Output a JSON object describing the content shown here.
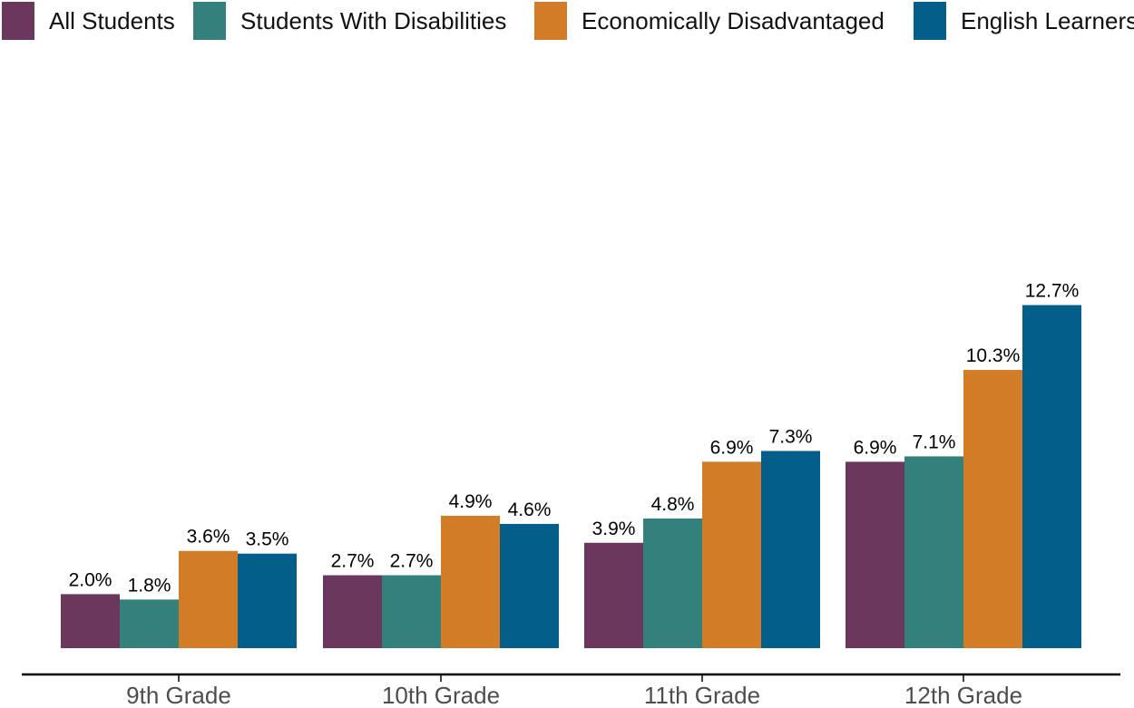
{
  "chart_data": {
    "type": "bar",
    "categories": [
      "9th Grade",
      "10th Grade",
      "11th Grade",
      "12th Grade"
    ],
    "series": [
      {
        "name": "All Students",
        "color": "#6b375c",
        "values": [
          2.0,
          2.7,
          3.9,
          6.9
        ],
        "labels": [
          "2.0%",
          "2.7%",
          "3.9%",
          "6.9%"
        ]
      },
      {
        "name": "Students With Disabilities",
        "color": "#33807d",
        "values": [
          1.8,
          2.7,
          4.8,
          7.1
        ],
        "labels": [
          "1.8%",
          "2.7%",
          "4.8%",
          "7.1%"
        ]
      },
      {
        "name": "Economically Disadvantaged",
        "color": "#d27c28",
        "values": [
          3.6,
          4.9,
          6.9,
          10.3
        ],
        "labels": [
          "3.6%",
          "4.9%",
          "6.9%",
          "10.3%"
        ]
      },
      {
        "name": "English Learners",
        "color": "#035e8a",
        "values": [
          3.5,
          4.6,
          7.3,
          12.7
        ],
        "labels": [
          "3.5%",
          "4.6%",
          "7.3%",
          "12.7%"
        ]
      }
    ],
    "title": "",
    "xlabel": "",
    "ylabel": "",
    "ylim": [
      0,
      19
    ],
    "grid": false,
    "legend_position": "top"
  }
}
